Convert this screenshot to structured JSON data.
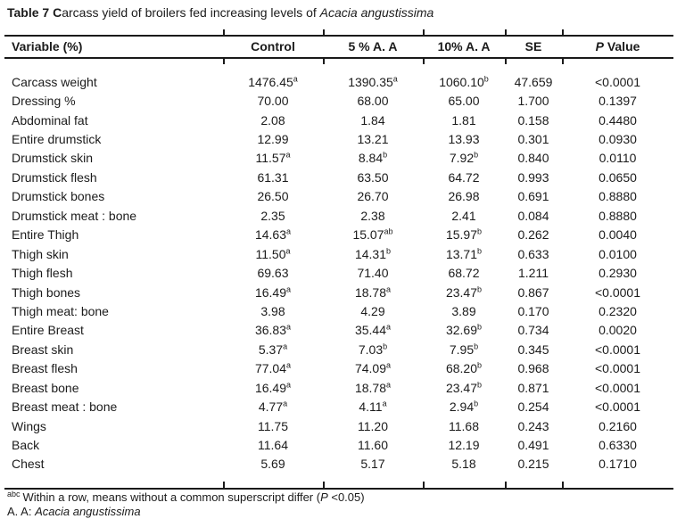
{
  "colors": {
    "background": "#ffffff",
    "text": "#1b1b1b",
    "rule": "#1a1a1a"
  },
  "title": {
    "bold": "Table 7 C",
    "regular": "arcass yield of broilers fed increasing levels of ",
    "italic": "Acacia angustissima"
  },
  "table": {
    "header": {
      "variable": "Variable (%)",
      "control": "Control",
      "treat5": "5 % A. A",
      "treat10": "10% A. A",
      "se": "SE",
      "p_italic": "P",
      "p_rest": " Value"
    },
    "rows": [
      {
        "name": "Carcass weight",
        "control": "1476.45",
        "control_sup": "a",
        "t5": "1390.35",
        "t5_sup": "a",
        "t10": "1060.10",
        "t10_sup": "b",
        "se": "47.659",
        "p": "<0.0001"
      },
      {
        "name": "Dressing %",
        "control": "70.00",
        "control_sup": "",
        "t5": "68.00",
        "t5_sup": "",
        "t10": "65.00",
        "t10_sup": "",
        "se": "1.700",
        "p": "0.1397"
      },
      {
        "name": "Abdominal fat",
        "control": "2.08",
        "control_sup": "",
        "t5": "1.84",
        "t5_sup": "",
        "t10": "1.81",
        "t10_sup": "",
        "se": "0.158",
        "p": "0.4480"
      },
      {
        "name": "Entire drumstick",
        "control": "12.99",
        "control_sup": "",
        "t5": "13.21",
        "t5_sup": "",
        "t10": "13.93",
        "t10_sup": "",
        "se": "0.301",
        "p": "0.0930"
      },
      {
        "name": "Drumstick skin",
        "control": "11.57",
        "control_sup": "a",
        "t5": "8.84",
        "t5_sup": "b",
        "t10": "7.92",
        "t10_sup": "b",
        "se": "0.840",
        "p": "0.0110"
      },
      {
        "name": "Drumstick flesh",
        "control": "61.31",
        "control_sup": "",
        "t5": "63.50",
        "t5_sup": "",
        "t10": "64.72",
        "t10_sup": "",
        "se": "0.993",
        "p": "0.0650"
      },
      {
        "name": "Drumstick bones",
        "control": "26.50",
        "control_sup": "",
        "t5": "26.70",
        "t5_sup": "",
        "t10": "26.98",
        "t10_sup": "",
        "se": "0.691",
        "p": "0.8880"
      },
      {
        "name": "Drumstick meat : bone",
        "control": "2.35",
        "control_sup": "",
        "t5": "2.38",
        "t5_sup": "",
        "t10": "2.41",
        "t10_sup": "",
        "se": "0.084",
        "p": "0.8880"
      },
      {
        "name": "Entire Thigh",
        "control": "14.63",
        "control_sup": "a",
        "t5": "15.07",
        "t5_sup": "ab",
        "t10": "15.97",
        "t10_sup": "b",
        "se": "0.262",
        "p": "0.0040"
      },
      {
        "name": "Thigh skin",
        "control": "11.50",
        "control_sup": "a",
        "t5": "14.31",
        "t5_sup": "b",
        "t10": "13.71",
        "t10_sup": "b",
        "se": "0.633",
        "p": "0.0100"
      },
      {
        "name": "Thigh flesh",
        "control": "69.63",
        "control_sup": "",
        "t5": "71.40",
        "t5_sup": "",
        "t10": "68.72",
        "t10_sup": "",
        "se": "1.211",
        "p": "0.2930"
      },
      {
        "name": "Thigh bones",
        "control": "16.49",
        "control_sup": "a",
        "t5": "18.78",
        "t5_sup": "a",
        "t10": "23.47",
        "t10_sup": "b",
        "se": "0.867",
        "p": "<0.0001"
      },
      {
        "name": "Thigh meat: bone",
        "control": "3.98",
        "control_sup": "",
        "t5": "4.29",
        "t5_sup": "",
        "t10": "3.89",
        "t10_sup": "",
        "se": "0.170",
        "p": "0.2320"
      },
      {
        "name": "Entire Breast",
        "control": "36.83",
        "control_sup": "a",
        "t5": "35.44",
        "t5_sup": "a",
        "t10": "32.69",
        "t10_sup": "b",
        "se": "0.734",
        "p": "0.0020"
      },
      {
        "name": "Breast skin",
        "control": "5.37",
        "control_sup": "a",
        "t5": "7.03",
        "t5_sup": "b",
        "t10": "7.95",
        "t10_sup": "b",
        "se": "0.345",
        "p": "<0.0001"
      },
      {
        "name": "Breast flesh",
        "control": "77.04",
        "control_sup": "a",
        "t5": "74.09",
        "t5_sup": "a",
        "t10": "68.20",
        "t10_sup": "b",
        "se": "0.968",
        "p": "<0.0001"
      },
      {
        "name": "Breast bone",
        "control": "16.49",
        "control_sup": "a",
        "t5": "18.78",
        "t5_sup": "a",
        "t10": "23.47",
        "t10_sup": "b",
        "se": "0.871",
        "p": "<0.0001"
      },
      {
        "name": "Breast meat : bone",
        "control": "4.77",
        "control_sup": "a",
        "t5": "4.11",
        "t5_sup": "a",
        "t10": "2.94",
        "t10_sup": "b",
        "se": "0.254",
        "p": "<0.0001"
      },
      {
        "name": "Wings",
        "control": "11.75",
        "control_sup": "",
        "t5": "11.20",
        "t5_sup": "",
        "t10": "11.68",
        "t10_sup": "",
        "se": "0.243",
        "p": "0.2160"
      },
      {
        "name": "Back",
        "control": "11.64",
        "control_sup": "",
        "t5": "11.60",
        "t5_sup": "",
        "t10": "12.19",
        "t10_sup": "",
        "se": "0.491",
        "p": "0.6330"
      },
      {
        "name": "Chest",
        "control": "5.69",
        "control_sup": "",
        "t5": "5.17",
        "t5_sup": "",
        "t10": "5.18",
        "t10_sup": "",
        "se": "0.215",
        "p": "0.1710"
      }
    ]
  },
  "footnotes": {
    "sup": "abc",
    "line1_pre": "Within a row, means without a common superscript differ (",
    "line1_italic": "P",
    "line1_post": " <0.05)",
    "line2_plain": "A. A: ",
    "line2_italic": "Acacia angustissima"
  }
}
